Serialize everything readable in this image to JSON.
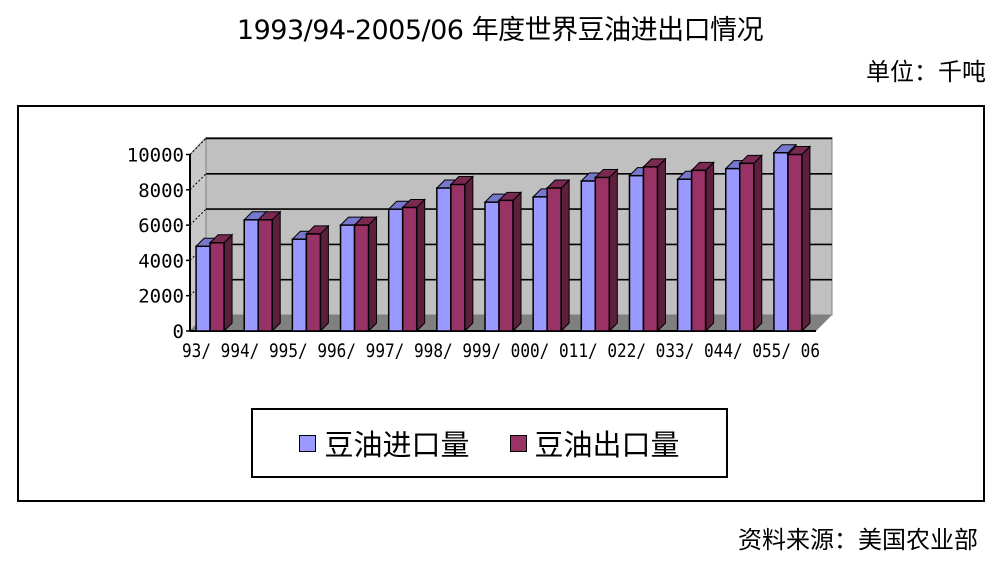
{
  "header": {
    "title": "1993/94-2005/06 年度世界豆油进出口情况",
    "unit": "单位：千吨"
  },
  "footer": {
    "source": "资料来源：美国农业部"
  },
  "legend": {
    "items": [
      {
        "label": "豆油进口量",
        "color": "#9999FF"
      },
      {
        "label": "豆油出口量",
        "color": "#993366"
      }
    ]
  },
  "axis": {
    "y_ticks": [
      "0",
      "2000",
      "4000",
      "6000",
      "8000",
      "10000"
    ],
    "x_tick_text": "93/ 994/ 995/ 996/ 997/ 998/ 999/ 000/ 011/ 022/ 033/ 044/ 055/ 06"
  },
  "colors": {
    "import_front": "#9999FF",
    "import_top": "#7777CC",
    "import_side": "#6666AA",
    "export_front": "#993366",
    "export_top": "#7A2950",
    "export_side": "#5C1F3E",
    "wall": "#C0C0C0",
    "floor": "#808080"
  },
  "chart_data": {
    "type": "bar",
    "title": "1993/94-2005/06 年度世界豆油进出口情况",
    "subtitle": "单位：千吨",
    "xlabel": "",
    "ylabel": "",
    "ylim": [
      0,
      10000
    ],
    "y_ticks": [
      0,
      2000,
      4000,
      6000,
      8000,
      10000
    ],
    "grid": true,
    "style": "3d-clustered-column",
    "legend_position": "bottom",
    "categories": [
      "93/94",
      "94/95",
      "95/96",
      "96/97",
      "97/98",
      "98/99",
      "99/00",
      "00/01",
      "01/02",
      "02/03",
      "03/04",
      "04/05",
      "05/06"
    ],
    "series": [
      {
        "name": "豆油进口量",
        "color": "#9999FF",
        "values": [
          4800,
          6300,
          5200,
          6000,
          6900,
          8100,
          7300,
          7600,
          8500,
          8800,
          8600,
          9200,
          10100
        ]
      },
      {
        "name": "豆油出口量",
        "color": "#993366",
        "values": [
          5000,
          6300,
          5500,
          6000,
          7000,
          8300,
          7400,
          8100,
          8700,
          9300,
          9100,
          9500,
          10000
        ]
      }
    ],
    "annotations": [
      "资料来源：美国农业部"
    ]
  }
}
